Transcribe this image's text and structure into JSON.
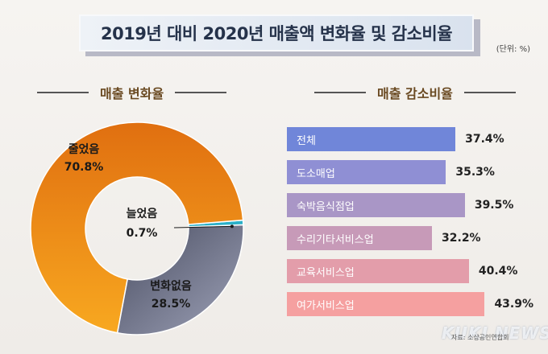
{
  "title": "2019년 대비 2020년 매출액 변화율 및 감소비율",
  "unit_note": "(단위: %)",
  "source": "자료: 소상공인연합회",
  "watermark": "KUKI NEWS",
  "colors": {
    "decreased": "#f08a1a",
    "unchanged": "#7e8096",
    "increased": "#2ab0c8",
    "bars": [
      "#7086d9",
      "#8f8fd4",
      "#a996c6",
      "#c79ab8",
      "#e39daa",
      "#f5a0a0"
    ]
  },
  "chart_data": [
    {
      "type": "pie",
      "title": "매출 변화율",
      "slices": [
        {
          "label": "늘었음",
          "value": 0.7
        },
        {
          "label": "줄었음",
          "value": 70.8
        },
        {
          "label": "변화없음",
          "value": 28.5
        }
      ]
    },
    {
      "type": "bar",
      "title": "매출 감소비율",
      "orientation": "horizontal",
      "categories": [
        "전체",
        "도소매업",
        "숙박음식점업",
        "수리기타서비스업",
        "교육서비스업",
        "여가서비스업"
      ],
      "values": [
        37.4,
        35.3,
        39.5,
        32.2,
        40.4,
        43.9
      ]
    }
  ]
}
